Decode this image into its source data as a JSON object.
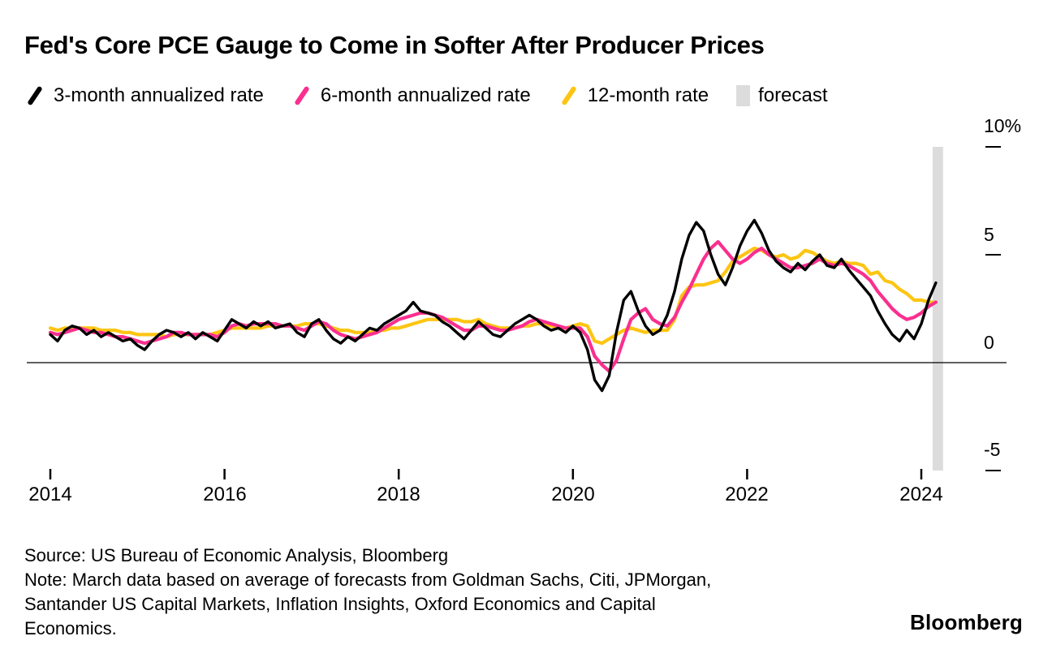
{
  "chart_data": {
    "type": "line",
    "title": "Fed's Core PCE Gauge to Come in Softer After Producer Prices",
    "xlabel": "",
    "ylabel": "",
    "y_unit": "%",
    "xlim": [
      2013.9,
      2024.45
    ],
    "ylim": [
      -5,
      10
    ],
    "grid": "zero-line-only",
    "legend_position": "top",
    "x_start": "2014-01",
    "x_interval": "month",
    "y_ticks": [
      {
        "label": "10%",
        "value": 10
      },
      {
        "label": "5",
        "value": 5
      },
      {
        "label": "0",
        "value": 0
      },
      {
        "label": "-5",
        "value": -5
      }
    ],
    "x_ticks": [
      {
        "label": "2014",
        "value": 2014
      },
      {
        "label": "2016",
        "value": 2016
      },
      {
        "label": "2018",
        "value": 2018
      },
      {
        "label": "2020",
        "value": 2020
      },
      {
        "label": "2022",
        "value": 2022
      },
      {
        "label": "2024",
        "value": 2024
      }
    ],
    "forecast_band": {
      "label": "forecast",
      "from": 2024.13,
      "to": 2024.25,
      "color": "#dcdcdc"
    },
    "legend": [
      {
        "label": "3-month annualized rate",
        "color": "#000000",
        "kind": "line"
      },
      {
        "label": "6-month annualized rate",
        "color": "#fa2f8f",
        "kind": "line"
      },
      {
        "label": "12-month rate",
        "color": "#fdc513",
        "kind": "line"
      },
      {
        "label": "forecast",
        "color": "#dcdcdc",
        "kind": "band"
      }
    ],
    "series": [
      {
        "name": "3-month annualized rate",
        "color": "#000000",
        "width": 3.4,
        "values": [
          1.3,
          1.0,
          1.5,
          1.7,
          1.6,
          1.3,
          1.5,
          1.2,
          1.4,
          1.2,
          1.0,
          1.1,
          0.8,
          0.6,
          1.0,
          1.3,
          1.5,
          1.4,
          1.2,
          1.4,
          1.1,
          1.4,
          1.2,
          1.0,
          1.5,
          2.0,
          1.8,
          1.6,
          1.9,
          1.7,
          1.9,
          1.6,
          1.7,
          1.8,
          1.4,
          1.2,
          1.8,
          2.0,
          1.5,
          1.1,
          0.9,
          1.2,
          1.0,
          1.3,
          1.6,
          1.5,
          1.8,
          2.0,
          2.2,
          2.4,
          2.8,
          2.4,
          2.3,
          2.2,
          1.9,
          1.7,
          1.4,
          1.1,
          1.5,
          1.9,
          1.6,
          1.3,
          1.2,
          1.5,
          1.8,
          2.0,
          2.2,
          2.0,
          1.7,
          1.5,
          1.6,
          1.4,
          1.7,
          1.4,
          0.6,
          -0.8,
          -1.3,
          -0.6,
          1.4,
          2.9,
          3.3,
          2.4,
          1.7,
          1.3,
          1.5,
          2.2,
          3.3,
          4.8,
          5.9,
          6.5,
          6.1,
          5.0,
          4.1,
          3.6,
          4.4,
          5.4,
          6.1,
          6.6,
          6.0,
          5.2,
          4.7,
          4.4,
          4.2,
          4.6,
          4.3,
          4.7,
          5.0,
          4.5,
          4.4,
          4.8,
          4.3,
          3.9,
          3.5,
          3.1,
          2.4,
          1.8,
          1.3,
          1.0,
          1.5,
          1.1,
          1.8,
          2.9,
          3.7
        ]
      },
      {
        "name": "6-month annualized rate",
        "color": "#fa2f8f",
        "width": 4.2,
        "values": [
          1.4,
          1.3,
          1.4,
          1.5,
          1.6,
          1.5,
          1.4,
          1.4,
          1.3,
          1.2,
          1.2,
          1.1,
          1.0,
          0.9,
          1.0,
          1.1,
          1.2,
          1.4,
          1.4,
          1.3,
          1.3,
          1.3,
          1.3,
          1.2,
          1.4,
          1.7,
          1.8,
          1.7,
          1.8,
          1.8,
          1.8,
          1.8,
          1.7,
          1.7,
          1.6,
          1.5,
          1.7,
          1.9,
          1.8,
          1.5,
          1.3,
          1.2,
          1.1,
          1.2,
          1.3,
          1.4,
          1.6,
          1.8,
          2.0,
          2.1,
          2.2,
          2.3,
          2.3,
          2.2,
          2.1,
          1.9,
          1.7,
          1.5,
          1.5,
          1.7,
          1.7,
          1.6,
          1.5,
          1.5,
          1.6,
          1.7,
          1.9,
          2.0,
          1.9,
          1.8,
          1.7,
          1.6,
          1.6,
          1.6,
          1.2,
          0.3,
          -0.1,
          -0.4,
          0.1,
          1.1,
          2.0,
          2.3,
          2.5,
          2.0,
          1.8,
          1.7,
          2.1,
          2.8,
          3.4,
          4.1,
          4.8,
          5.3,
          5.6,
          5.2,
          4.8,
          4.6,
          4.8,
          5.1,
          5.3,
          5.0,
          4.8,
          4.6,
          4.4,
          4.4,
          4.5,
          4.6,
          4.8,
          4.6,
          4.5,
          4.6,
          4.5,
          4.3,
          4.1,
          3.8,
          3.3,
          2.9,
          2.5,
          2.2,
          2.0,
          2.1,
          2.3,
          2.6,
          2.8
        ]
      },
      {
        "name": "12-month rate",
        "color": "#fdc513",
        "width": 4.2,
        "values": [
          1.6,
          1.5,
          1.6,
          1.6,
          1.6,
          1.6,
          1.6,
          1.5,
          1.5,
          1.5,
          1.4,
          1.4,
          1.3,
          1.3,
          1.3,
          1.3,
          1.2,
          1.3,
          1.3,
          1.3,
          1.3,
          1.3,
          1.3,
          1.4,
          1.5,
          1.6,
          1.6,
          1.6,
          1.6,
          1.6,
          1.7,
          1.7,
          1.7,
          1.7,
          1.7,
          1.8,
          1.8,
          1.8,
          1.7,
          1.6,
          1.5,
          1.5,
          1.4,
          1.4,
          1.4,
          1.5,
          1.5,
          1.6,
          1.6,
          1.7,
          1.8,
          1.9,
          2.0,
          2.0,
          2.0,
          2.0,
          2.0,
          1.9,
          1.9,
          2.0,
          1.8,
          1.7,
          1.6,
          1.6,
          1.6,
          1.7,
          1.7,
          1.8,
          1.8,
          1.7,
          1.6,
          1.6,
          1.7,
          1.8,
          1.7,
          1.0,
          0.9,
          1.1,
          1.3,
          1.5,
          1.6,
          1.5,
          1.4,
          1.5,
          1.5,
          1.5,
          2.0,
          3.1,
          3.5,
          3.6,
          3.6,
          3.7,
          3.8,
          4.2,
          4.7,
          4.9,
          5.1,
          5.3,
          5.2,
          5.0,
          4.9,
          5.0,
          4.8,
          4.9,
          5.2,
          5.1,
          4.9,
          4.7,
          4.6,
          4.7,
          4.6,
          4.6,
          4.5,
          4.1,
          4.2,
          3.8,
          3.7,
          3.4,
          3.2,
          2.9,
          2.9,
          2.8,
          2.8
        ]
      }
    ]
  },
  "footer": {
    "source": "Source: US Bureau of Economic Analysis, Bloomberg",
    "note": "Note: March data based on average of forecasts from Goldman Sachs, Citi, JPMorgan, Santander US Capital Markets, Inflation Insights, Oxford Economics and Capital Economics.",
    "brand": "Bloomberg"
  }
}
